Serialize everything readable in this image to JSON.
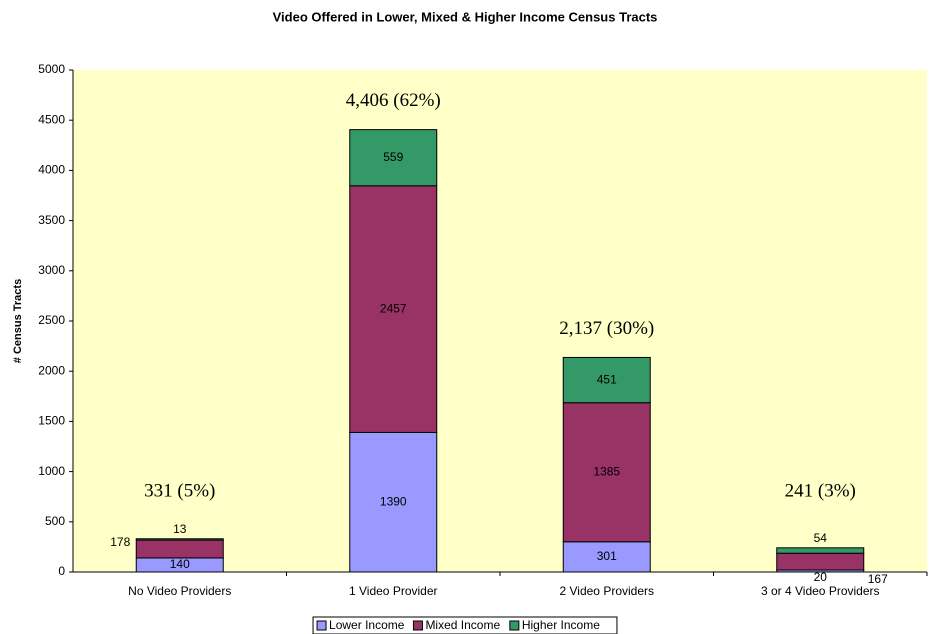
{
  "chart_data": {
    "type": "stacked_bar",
    "title": "Video Offered in Lower, Mixed & Higher Income Census Tracts",
    "y_label": "# Census Tracts",
    "categories": [
      "No Video Providers",
      "1 Video Provider",
      "2 Video Providers",
      "3 or 4 Video Providers"
    ],
    "series": [
      {
        "name": "Lower Income",
        "color": "#9999ff",
        "values": [
          140,
          1390,
          301,
          20
        ]
      },
      {
        "name": "Mixed Income",
        "color": "#993366",
        "values": [
          178,
          2457,
          1385,
          167
        ]
      },
      {
        "name": "Higher Income",
        "color": "#339966",
        "values": [
          13,
          559,
          451,
          54
        ]
      }
    ],
    "total_labels": [
      "331 (5%)",
      "4,406 (62%)",
      "2,137 (30%)",
      "241 (3%)"
    ],
    "ylim": [
      0,
      5000
    ],
    "yticks": [
      0,
      500,
      1000,
      1500,
      2000,
      2500,
      3000,
      3500,
      4000,
      4500,
      5000
    ],
    "grid": false,
    "legend": "bottom",
    "plot_background": "#ffffc8"
  }
}
